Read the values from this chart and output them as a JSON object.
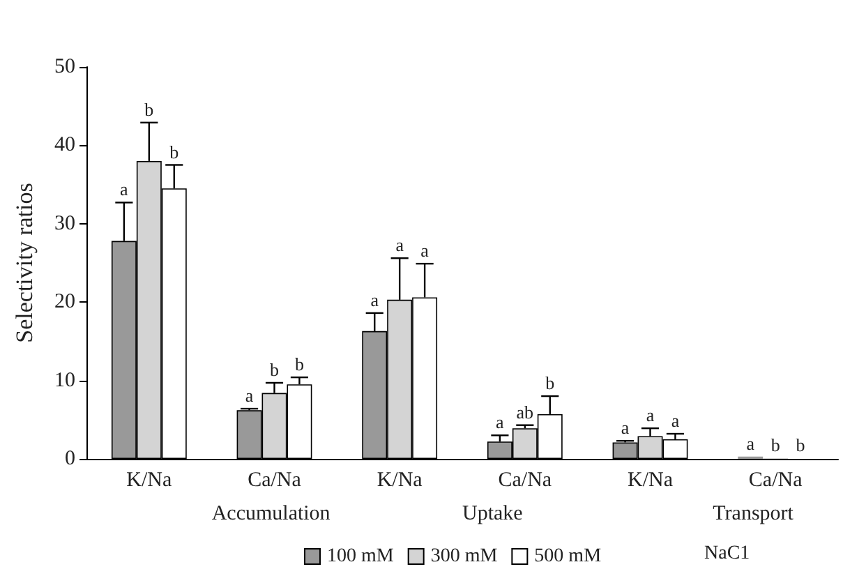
{
  "chart_data": {
    "type": "bar",
    "ylabel": "Selectivity ratios",
    "categories": [
      "K/Na",
      "Ca/Na",
      "K/Na",
      "Ca/Na",
      "K/Na",
      "Ca/Na"
    ],
    "series": [
      {
        "name": "100 mM",
        "color": "#999999",
        "values": [
          27.8,
          6.2,
          16.3,
          2.2,
          2.1,
          0.3
        ],
        "errors": [
          [
            27.8,
            32.7
          ],
          [
            6.2,
            6.4
          ],
          [
            16.3,
            18.6
          ],
          [
            2.2,
            3.0
          ],
          [
            2.1,
            2.3
          ],
          null
        ],
        "value_labels": [
          "a",
          "a",
          "a",
          "a",
          "a",
          "a"
        ]
      },
      {
        "name": "300 mM",
        "color": "#d4d4d4",
        "values": [
          38.0,
          8.4,
          20.3,
          3.9,
          2.9,
          0.1
        ],
        "errors": [
          [
            38.0,
            42.9
          ],
          [
            8.4,
            9.7
          ],
          [
            20.3,
            25.6
          ],
          [
            3.9,
            4.3
          ],
          [
            2.9,
            3.9
          ],
          null
        ],
        "value_labels": [
          "b",
          "b",
          "a",
          "ab",
          "a",
          "b"
        ]
      },
      {
        "name": "500 mM",
        "color": "#ffffff",
        "values": [
          34.5,
          9.5,
          20.6,
          5.7,
          2.5,
          0.1
        ],
        "errors": [
          [
            34.5,
            37.5
          ],
          [
            9.5,
            10.4
          ],
          [
            20.6,
            24.9
          ],
          [
            5.7,
            8.0
          ],
          [
            2.5,
            3.2
          ],
          null
        ],
        "value_labels": [
          "b",
          "b",
          "a",
          "b",
          "a",
          "b"
        ]
      }
    ],
    "annotations": [
      "Accumulation",
      "Uptake",
      "Transport"
    ],
    "legend_title": "NaC1",
    "legend": "bottom",
    "grid": false,
    "ylim": [
      0,
      50
    ],
    "yticks": [
      0,
      10,
      20,
      30,
      40,
      50
    ]
  }
}
